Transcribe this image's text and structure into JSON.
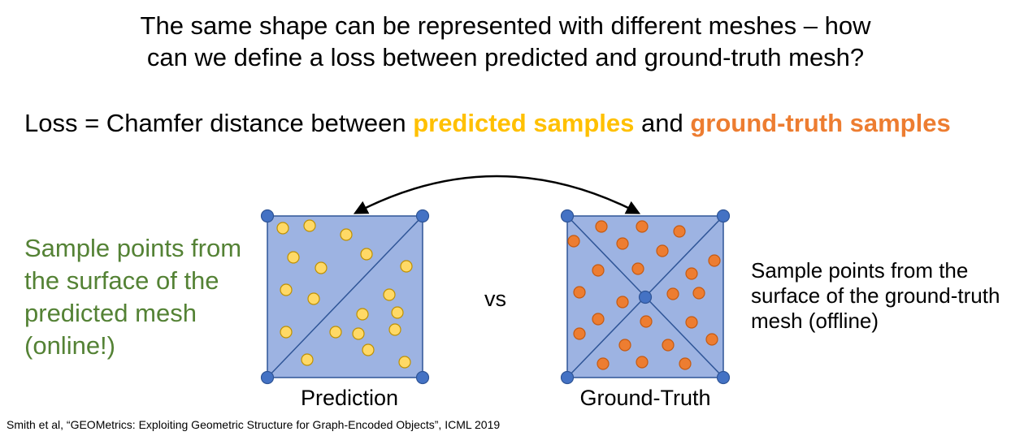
{
  "title_line1": "The same shape can be represented with different meshes – how",
  "title_line2": "can we define a loss between predicted and ground-truth mesh?",
  "loss": {
    "prefix": "Loss = Chamfer distance between ",
    "predicted": "predicted samples",
    "middle": " and ",
    "ground_truth": "ground-truth samples"
  },
  "left_note": "Sample points from the surface of the predicted mesh (online!)",
  "right_note": "Sample points from the surface of the ground-truth mesh (offline)",
  "vs": "vs",
  "prediction_caption": "Prediction",
  "ground_truth_caption": "Ground-Truth",
  "citation": "Smith et al, “GEOMetrics: Exploiting Geometric Structure for Graph-Encoded Objects”, ICML 2019",
  "colors": {
    "mesh_fill": "#9db3e2",
    "mesh_edge": "#2f5597",
    "vertex": "#4472c4",
    "predicted_sample": "#ffd966",
    "predicted_sample_edge": "#bf9000",
    "gt_sample": "#ed7d31",
    "gt_sample_edge": "#c55a11",
    "left_note": "#548235"
  }
}
